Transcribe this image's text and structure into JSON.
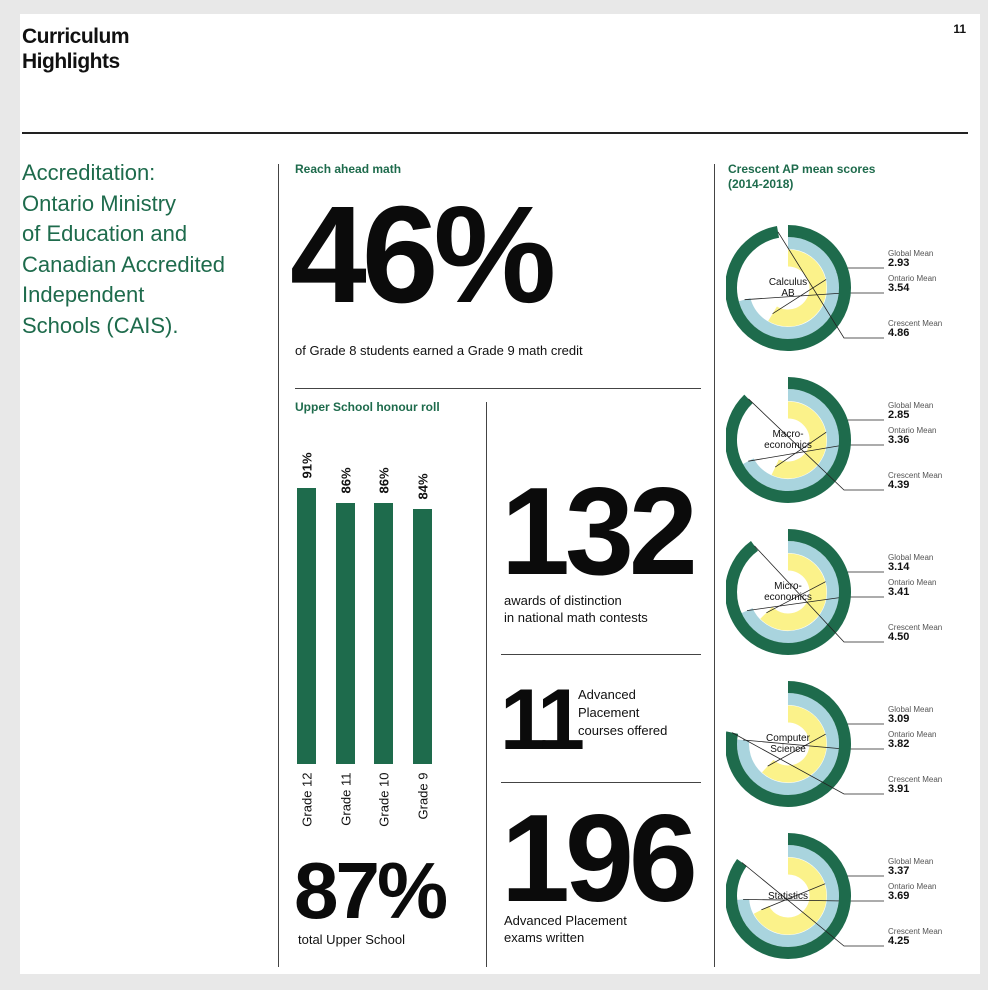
{
  "page": {
    "title_line1": "Curriculum",
    "title_line2": "Highlights",
    "page_number": "11",
    "accreditation_lines": [
      "Accreditation:",
      "Ontario Ministry",
      "of Education and",
      "Canadian Accredited",
      "Independent",
      "Schools (CAIS)."
    ]
  },
  "reach_ahead": {
    "label": "Reach ahead math",
    "value": "46%",
    "caption": "of Grade 8 students earned a Grade 9 math credit"
  },
  "honour_roll": {
    "label": "Upper School honour roll",
    "total_value": "87%",
    "total_caption": "total Upper School"
  },
  "stats": [
    {
      "value": "132",
      "caption_lines": [
        "awards of distinction",
        "in national math contests"
      ]
    },
    {
      "value": "11",
      "caption_lines": [
        "Advanced",
        "Placement",
        "courses offered"
      ]
    },
    {
      "value": "196",
      "caption_lines": [
        "Advanced Placement",
        "exams written"
      ]
    }
  ],
  "ap_scores": {
    "label_line1": "Crescent AP mean scores",
    "label_line2": "(2014-2018)",
    "global_label": "Global Mean",
    "ontario_label": "Ontario Mean",
    "crescent_label": "Crescent Mean"
  },
  "colors": {
    "green": "#1e6b4c",
    "light_blue": "#a9d4de",
    "yellow": "#fbf28a"
  },
  "chart_data": [
    {
      "type": "bar",
      "title": "Upper School honour roll",
      "categories": [
        "Grade 12",
        "Grade 11",
        "Grade 10",
        "Grade 9"
      ],
      "values": [
        91,
        86,
        86,
        84
      ],
      "value_labels": [
        "91%",
        "86%",
        "86%",
        "84%"
      ],
      "orientation": "vertical",
      "grid": false
    },
    {
      "type": "radial-bar",
      "title": "Crescent AP mean scores (2014-2018)",
      "scale_max": 5,
      "series": [
        {
          "name": "Global Mean",
          "color": "#fbf28a"
        },
        {
          "name": "Ontario Mean",
          "color": "#a9d4de"
        },
        {
          "name": "Crescent Mean",
          "color": "#1e6b4c"
        }
      ],
      "items": [
        {
          "course_lines": [
            "Calculus",
            "AB"
          ],
          "global": "2.93",
          "ontario": "3.54",
          "crescent": "4.86"
        },
        {
          "course_lines": [
            "Macro-",
            "economics"
          ],
          "global": "2.85",
          "ontario": "3.36",
          "crescent": "4.39"
        },
        {
          "course_lines": [
            "Micro-",
            "economics"
          ],
          "global": "3.14",
          "ontario": "3.41",
          "crescent": "4.50"
        },
        {
          "course_lines": [
            "Computer",
            "Science"
          ],
          "global": "3.09",
          "ontario": "3.82",
          "crescent": "3.91"
        },
        {
          "course_lines": [
            "Statistics"
          ],
          "global": "3.37",
          "ontario": "3.69",
          "crescent": "4.25"
        }
      ]
    }
  ]
}
